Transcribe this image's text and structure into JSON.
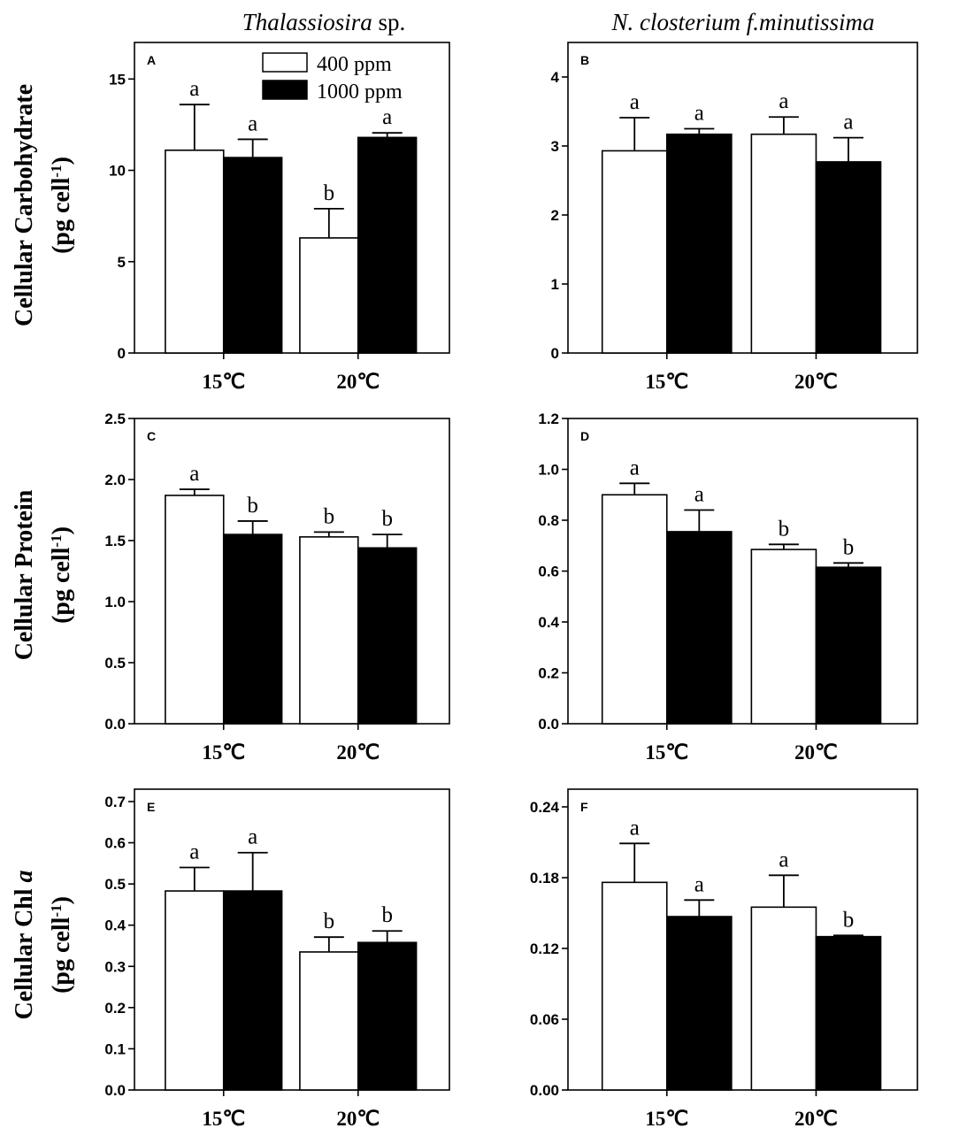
{
  "figure": {
    "column_titles": [
      {
        "main": "Thalassiosira",
        "suffix": " sp."
      },
      {
        "main": "N. closterium f.minutissima",
        "suffix": ""
      }
    ],
    "row_labels": [
      {
        "line1": "Cellular Carbohydrate",
        "line2_main": "(pg cell",
        "line2_sup": "-1",
        "line2_end": ")",
        "italic_part": ""
      },
      {
        "line1": "Cellular Protein",
        "line2_main": "(pg cell",
        "line2_sup": "-1",
        "line2_end": ")",
        "italic_part": ""
      },
      {
        "line1": "Cellular Chl ",
        "line2_main": "(pg cell",
        "line2_sup": "-1",
        "line2_end": ")",
        "italic_part": "a"
      }
    ],
    "legend": [
      {
        "label": "400 ppm",
        "color": "#ffffff"
      },
      {
        "label": "1000 ppm",
        "color": "#000000"
      }
    ]
  },
  "chart_data": [
    {
      "type": "bar",
      "panel": "A",
      "categories": [
        "15℃",
        "20℃"
      ],
      "ylim": [
        0,
        17
      ],
      "yticks": [
        0,
        5,
        10,
        15
      ],
      "tick_labels": [
        "0",
        "5",
        "10",
        "15"
      ],
      "series": [
        {
          "name": "400 ppm",
          "values": [
            11.1,
            6.3
          ],
          "errors": [
            2.5,
            1.6
          ],
          "sig": [
            "a",
            "b"
          ]
        },
        {
          "name": "1000 ppm",
          "values": [
            10.7,
            11.8
          ],
          "errors": [
            1.0,
            0.25
          ],
          "sig": [
            "a",
            "a"
          ]
        }
      ]
    },
    {
      "type": "bar",
      "panel": "B",
      "categories": [
        "15℃",
        "20℃"
      ],
      "ylim": [
        0,
        4.5
      ],
      "yticks": [
        0,
        1,
        2,
        3,
        4
      ],
      "tick_labels": [
        "0",
        "1",
        "2",
        "3",
        "4"
      ],
      "series": [
        {
          "name": "400 ppm",
          "values": [
            2.93,
            3.17
          ],
          "errors": [
            0.48,
            0.25
          ],
          "sig": [
            "a",
            "a"
          ]
        },
        {
          "name": "1000 ppm",
          "values": [
            3.17,
            2.77
          ],
          "errors": [
            0.08,
            0.35
          ],
          "sig": [
            "a",
            "a"
          ]
        }
      ]
    },
    {
      "type": "bar",
      "panel": "C",
      "categories": [
        "15℃",
        "20℃"
      ],
      "ylim": [
        0,
        2.5
      ],
      "yticks": [
        0,
        0.5,
        1.0,
        1.5,
        2.0,
        2.5
      ],
      "tick_labels": [
        "0.0",
        "0.5",
        "1.0",
        "1.5",
        "2.0",
        "2.5"
      ],
      "series": [
        {
          "name": "400 ppm",
          "values": [
            1.87,
            1.53
          ],
          "errors": [
            0.05,
            0.04
          ],
          "sig": [
            "a",
            "b"
          ]
        },
        {
          "name": "1000 ppm",
          "values": [
            1.55,
            1.44
          ],
          "errors": [
            0.11,
            0.11
          ],
          "sig": [
            "b",
            "b"
          ]
        }
      ]
    },
    {
      "type": "bar",
      "panel": "D",
      "categories": [
        "15℃",
        "20℃"
      ],
      "ylim": [
        0,
        1.2
      ],
      "yticks": [
        0,
        0.2,
        0.4,
        0.6,
        0.8,
        1.0,
        1.2
      ],
      "tick_labels": [
        "0.0",
        "0.2",
        "0.4",
        "0.6",
        "0.8",
        "1.0",
        "1.2"
      ],
      "series": [
        {
          "name": "400 ppm",
          "values": [
            0.9,
            0.685
          ],
          "errors": [
            0.045,
            0.02
          ],
          "sig": [
            "a",
            "b"
          ]
        },
        {
          "name": "1000 ppm",
          "values": [
            0.755,
            0.615
          ],
          "errors": [
            0.085,
            0.017
          ],
          "sig": [
            "a",
            "b"
          ]
        }
      ]
    },
    {
      "type": "bar",
      "panel": "E",
      "categories": [
        "15℃",
        "20℃"
      ],
      "ylim": [
        0,
        0.73
      ],
      "yticks": [
        0,
        0.1,
        0.2,
        0.3,
        0.4,
        0.5,
        0.6,
        0.7
      ],
      "tick_labels": [
        "0.0",
        "0.1",
        "0.2",
        "0.3",
        "0.4",
        "0.5",
        "0.6",
        "0.7"
      ],
      "series": [
        {
          "name": "400 ppm",
          "values": [
            0.483,
            0.335
          ],
          "errors": [
            0.057,
            0.036
          ],
          "sig": [
            "a",
            "b"
          ]
        },
        {
          "name": "1000 ppm",
          "values": [
            0.483,
            0.358
          ],
          "errors": [
            0.093,
            0.028
          ],
          "sig": [
            "a",
            "b"
          ]
        }
      ]
    },
    {
      "type": "bar",
      "panel": "F",
      "categories": [
        "15℃",
        "20℃"
      ],
      "ylim": [
        0,
        0.255
      ],
      "yticks": [
        0,
        0.06,
        0.12,
        0.18,
        0.24
      ],
      "tick_labels": [
        "0.00",
        "0.06",
        "0.12",
        "0.18",
        "0.24"
      ],
      "series": [
        {
          "name": "400 ppm",
          "values": [
            0.176,
            0.155
          ],
          "errors": [
            0.033,
            0.027
          ],
          "sig": [
            "a",
            "a"
          ]
        },
        {
          "name": "1000 ppm",
          "values": [
            0.147,
            0.13
          ],
          "errors": [
            0.014,
            0.001
          ],
          "sig": [
            "a",
            "b"
          ]
        }
      ]
    }
  ]
}
